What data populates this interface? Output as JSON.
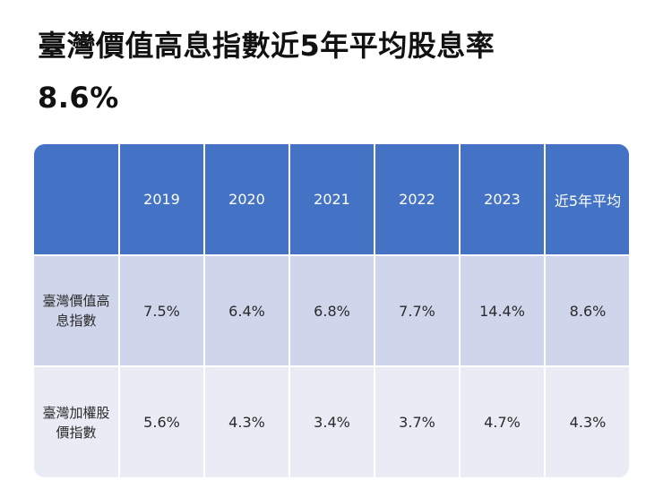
{
  "headline": {
    "line1": "臺灣價值高息指數近5年平均股息率",
    "line2": "8.6%"
  },
  "chart_data": {
    "type": "table",
    "columns": [
      "",
      "2019",
      "2020",
      "2021",
      "2022",
      "2023",
      "近5年平均"
    ],
    "rows": [
      {
        "label_line1": "臺灣價值高",
        "label_line2": "息指數",
        "values": [
          "7.5%",
          "6.4%",
          "6.8%",
          "7.7%",
          "14.4%",
          "8.6%"
        ]
      },
      {
        "label_line1": "臺灣加權股",
        "label_line2": "價指數",
        "values": [
          "5.6%",
          "4.3%",
          "3.4%",
          "3.7%",
          "4.7%",
          "4.3%"
        ]
      }
    ],
    "colors": {
      "header_bg": "#4472c4",
      "row1_bg": "#cfd5ea",
      "row2_bg": "#e9ebf5"
    }
  }
}
